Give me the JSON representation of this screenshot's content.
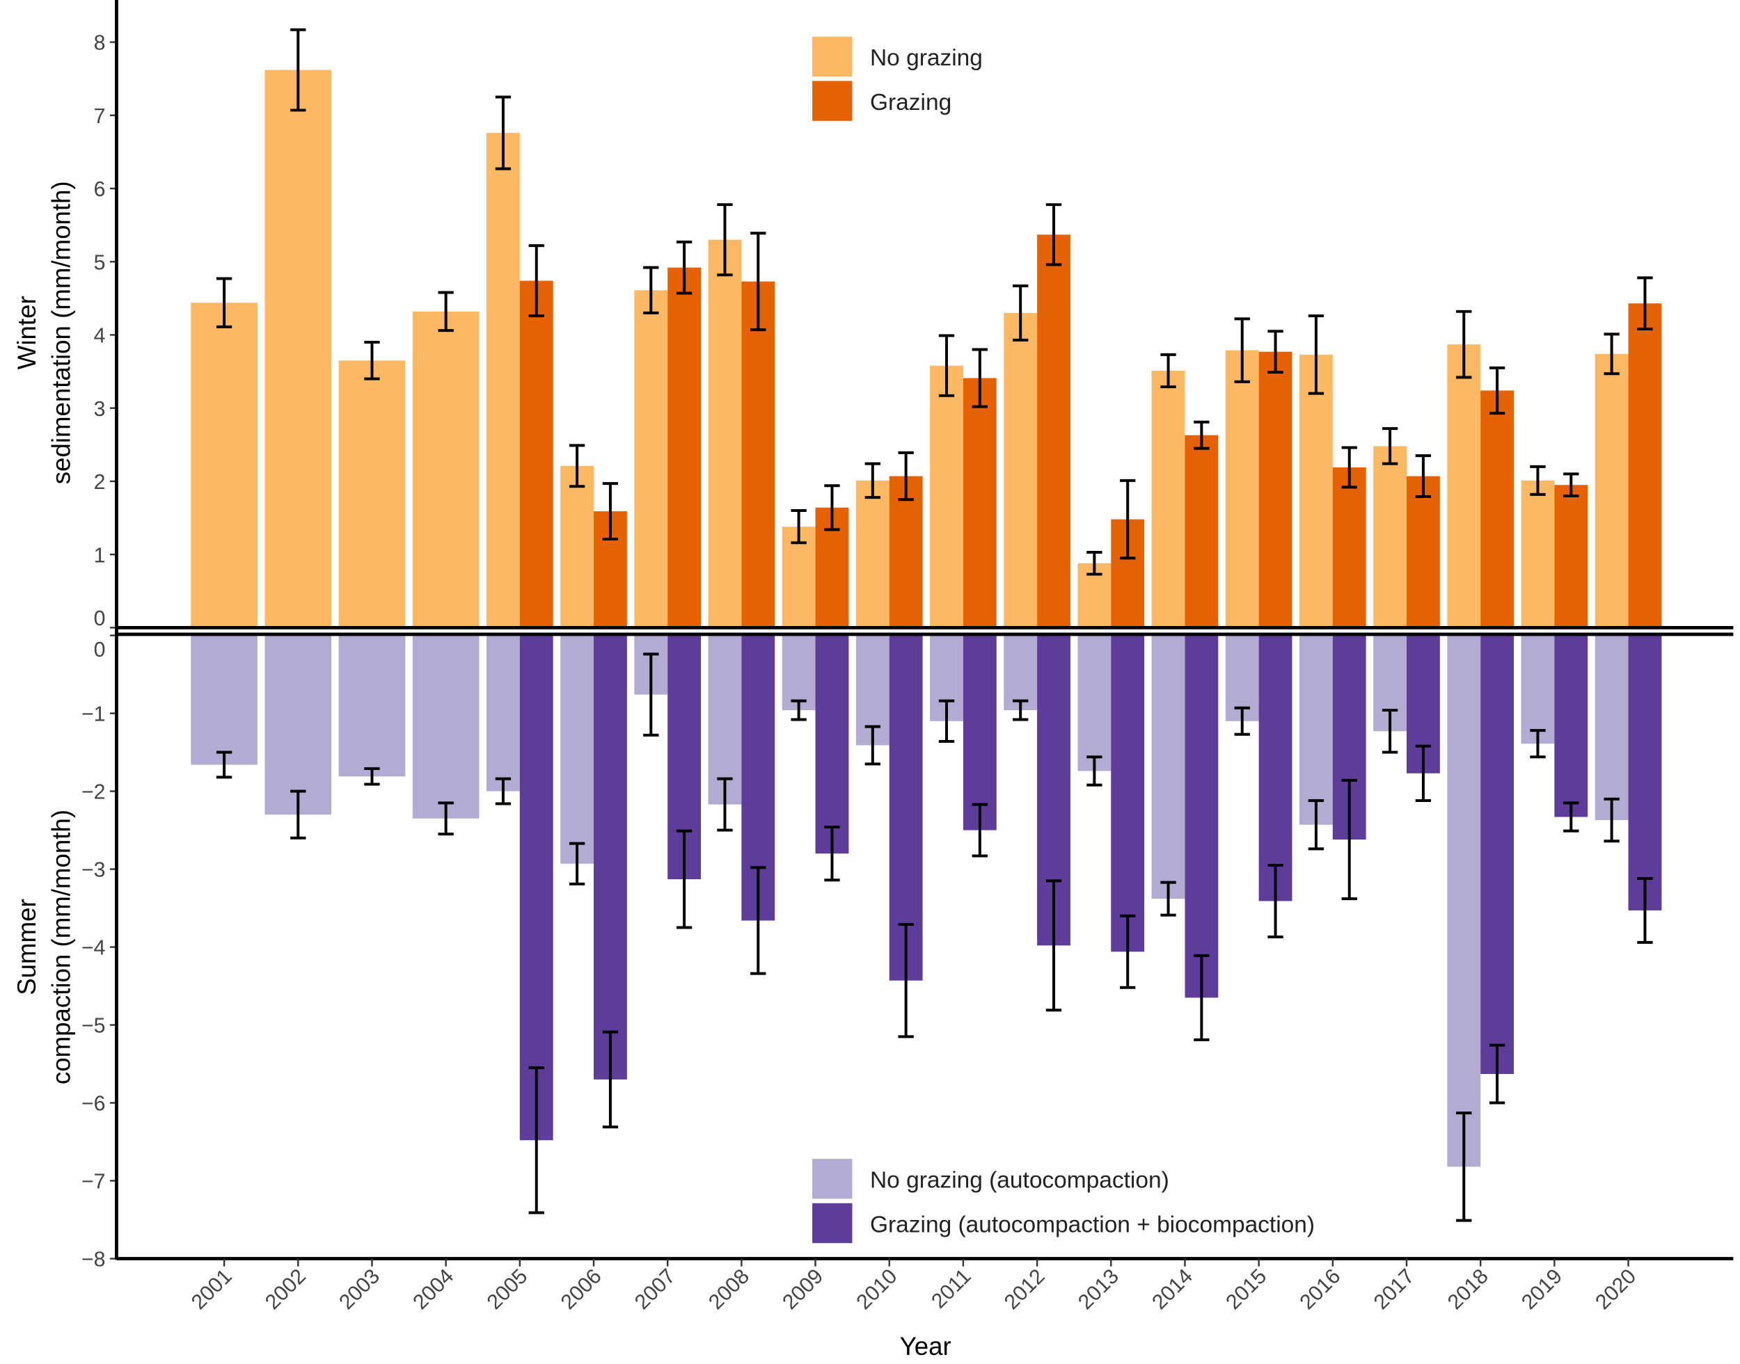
{
  "chart_data": [
    {
      "type": "bar",
      "panel": "top",
      "ylabel_lines": [
        "Winter",
        "sedimentation (mm/month)"
      ],
      "ylim": [
        0,
        8
      ],
      "yticks": [
        0,
        1,
        2,
        3,
        4,
        5,
        6,
        7,
        8
      ],
      "legend_position": "top-center",
      "categories": [
        "2001",
        "2002",
        "2003",
        "2004",
        "2005",
        "2006",
        "2007",
        "2008",
        "2009",
        "2010",
        "2011",
        "2012",
        "2013",
        "2014",
        "2015",
        "2016",
        "2017",
        "2018",
        "2019",
        "2020"
      ],
      "series": [
        {
          "name": "No grazing",
          "color": "#FDB863",
          "values": [
            4.44,
            7.62,
            3.65,
            4.32,
            6.76,
            2.21,
            4.61,
            5.3,
            1.38,
            2.01,
            3.58,
            4.3,
            0.88,
            3.51,
            3.79,
            3.73,
            2.48,
            3.87,
            2.01,
            3.74
          ],
          "errors": [
            0.33,
            0.55,
            0.25,
            0.26,
            0.49,
            0.28,
            0.31,
            0.48,
            0.22,
            0.23,
            0.41,
            0.37,
            0.15,
            0.22,
            0.43,
            0.53,
            0.24,
            0.45,
            0.19,
            0.27
          ]
        },
        {
          "name": "Grazing",
          "color": "#E66101",
          "values": [
            null,
            null,
            null,
            null,
            4.74,
            1.59,
            4.92,
            4.73,
            1.64,
            2.07,
            3.41,
            5.37,
            1.48,
            2.63,
            3.77,
            2.19,
            2.07,
            3.24,
            1.95,
            4.43
          ],
          "errors": [
            null,
            null,
            null,
            null,
            0.48,
            0.38,
            0.35,
            0.66,
            0.3,
            0.32,
            0.39,
            0.41,
            0.53,
            0.18,
            0.28,
            0.27,
            0.28,
            0.31,
            0.15,
            0.35
          ]
        }
      ]
    },
    {
      "type": "bar",
      "panel": "bottom",
      "ylabel_lines": [
        "Summer",
        "compaction (mm/month)"
      ],
      "xlabel": "Year",
      "ylim": [
        -8,
        0
      ],
      "yticks": [
        0,
        -1,
        -2,
        -3,
        -4,
        -5,
        -6,
        -7,
        -8
      ],
      "ytick_labels": [
        "0",
        "−1",
        "−2",
        "−3",
        "−4",
        "−5",
        "−6",
        "−7",
        "−8"
      ],
      "legend_position": "bottom-center",
      "categories": [
        "2001",
        "2002",
        "2003",
        "2004",
        "2005",
        "2006",
        "2007",
        "2008",
        "2009",
        "2010",
        "2011",
        "2012",
        "2013",
        "2014",
        "2015",
        "2016",
        "2017",
        "2018",
        "2019",
        "2020"
      ],
      "series": [
        {
          "name": "No grazing (autocompaction)",
          "color": "#B2ABD2",
          "values": [
            -1.66,
            -2.3,
            -1.81,
            -2.35,
            -2.0,
            -2.93,
            -0.76,
            -2.17,
            -0.96,
            -1.41,
            -1.1,
            -0.96,
            -1.74,
            -3.38,
            -1.1,
            -2.43,
            -1.23,
            -6.82,
            -1.39,
            -2.37
          ],
          "errors": [
            0.16,
            0.3,
            0.1,
            0.2,
            0.16,
            0.26,
            0.52,
            0.33,
            0.12,
            0.24,
            0.26,
            0.12,
            0.18,
            0.21,
            0.17,
            0.31,
            0.27,
            0.69,
            0.17,
            0.27
          ]
        },
        {
          "name": "Grazing (autocompaction + biocompaction)",
          "color": "#5E3C99",
          "values": [
            null,
            null,
            null,
            null,
            -6.48,
            -5.7,
            -3.13,
            -3.66,
            -2.8,
            -4.43,
            -2.5,
            -3.98,
            -4.06,
            -4.65,
            -3.41,
            -2.62,
            -1.77,
            -5.63,
            -2.33,
            -3.53
          ],
          "errors": [
            null,
            null,
            null,
            null,
            0.93,
            0.61,
            0.62,
            0.68,
            0.34,
            0.72,
            0.33,
            0.83,
            0.46,
            0.54,
            0.46,
            0.76,
            0.35,
            0.37,
            0.18,
            0.41
          ]
        }
      ]
    }
  ]
}
